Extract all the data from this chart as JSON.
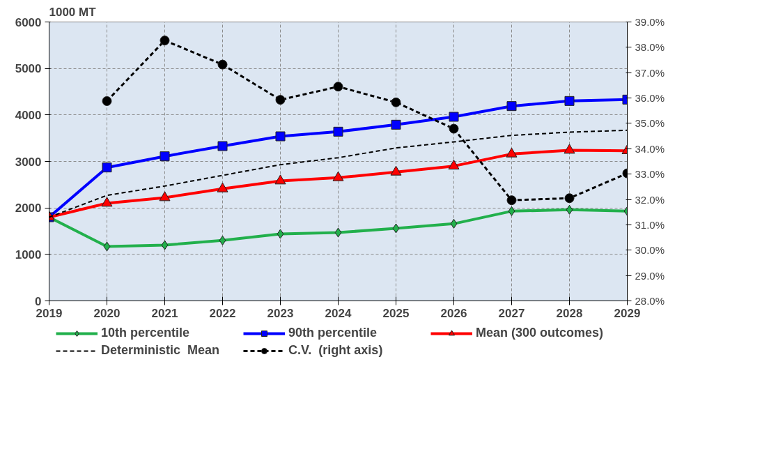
{
  "chart_data": {
    "type": "line",
    "ylabel": "1000 MT",
    "x": [
      2019,
      2020,
      2021,
      2022,
      2023,
      2024,
      2025,
      2026,
      2027,
      2028,
      2029
    ],
    "xlim": [
      2019,
      2029
    ],
    "xticks": [
      2019,
      2020,
      2021,
      2022,
      2023,
      2024,
      2025,
      2026,
      2027,
      2028,
      2029
    ],
    "ylim": [
      0,
      6000
    ],
    "yticks": [
      0,
      1000,
      2000,
      3000,
      4000,
      5000,
      6000
    ],
    "y2lim": [
      28,
      39
    ],
    "y2ticks": [
      {
        "value": 28,
        "label": "28.0%"
      },
      {
        "value": 29,
        "label": "29.0%"
      },
      {
        "value": 30,
        "label": "30.0%"
      },
      {
        "value": 31,
        "label": "31.0%"
      },
      {
        "value": 32,
        "label": "32.0%"
      },
      {
        "value": 33,
        "label": "33.0%"
      },
      {
        "value": 34,
        "label": "34.0%"
      },
      {
        "value": 35,
        "label": "35.0%"
      },
      {
        "value": 36,
        "label": "36.0%"
      },
      {
        "value": 37,
        "label": "37.0%"
      },
      {
        "value": 38,
        "label": "38.0%"
      },
      {
        "value": 39,
        "label": "39.0%"
      }
    ],
    "grid": true,
    "legend": "bottom",
    "series": [
      {
        "name": "10th percentile",
        "color": "#22b04c",
        "marker": "diamond",
        "line_style": "solid",
        "values": [
          1800,
          1170,
          1200,
          1300,
          1440,
          1470,
          1560,
          1660,
          1930,
          1960,
          1930
        ]
      },
      {
        "name": "90th percentile",
        "color": "#0000ff",
        "marker": "square",
        "line_style": "solid",
        "values": [
          1800,
          2870,
          3110,
          3330,
          3540,
          3640,
          3790,
          3960,
          4190,
          4300,
          4330
        ]
      },
      {
        "name": "Mean (300 outcomes)",
        "color": "#ff0000",
        "marker": "triangle",
        "line_style": "solid",
        "values": [
          1800,
          2100,
          2220,
          2410,
          2580,
          2650,
          2770,
          2900,
          3160,
          3240,
          3230
        ]
      },
      {
        "name": "Deterministic  Mean",
        "color": "#000000",
        "marker": "none",
        "line_style": "dashed",
        "values": [
          1800,
          2270,
          2470,
          2700,
          2930,
          3080,
          3290,
          3420,
          3560,
          3630,
          3670
        ]
      },
      {
        "name": "C.V.  (right axis)",
        "color": "#000000",
        "marker": "circle",
        "line_style": "dashed",
        "axis": "y2",
        "values": [
          null,
          35.88,
          38.27,
          37.32,
          35.93,
          36.45,
          35.83,
          34.79,
          31.97,
          32.05,
          33.03
        ]
      }
    ]
  }
}
